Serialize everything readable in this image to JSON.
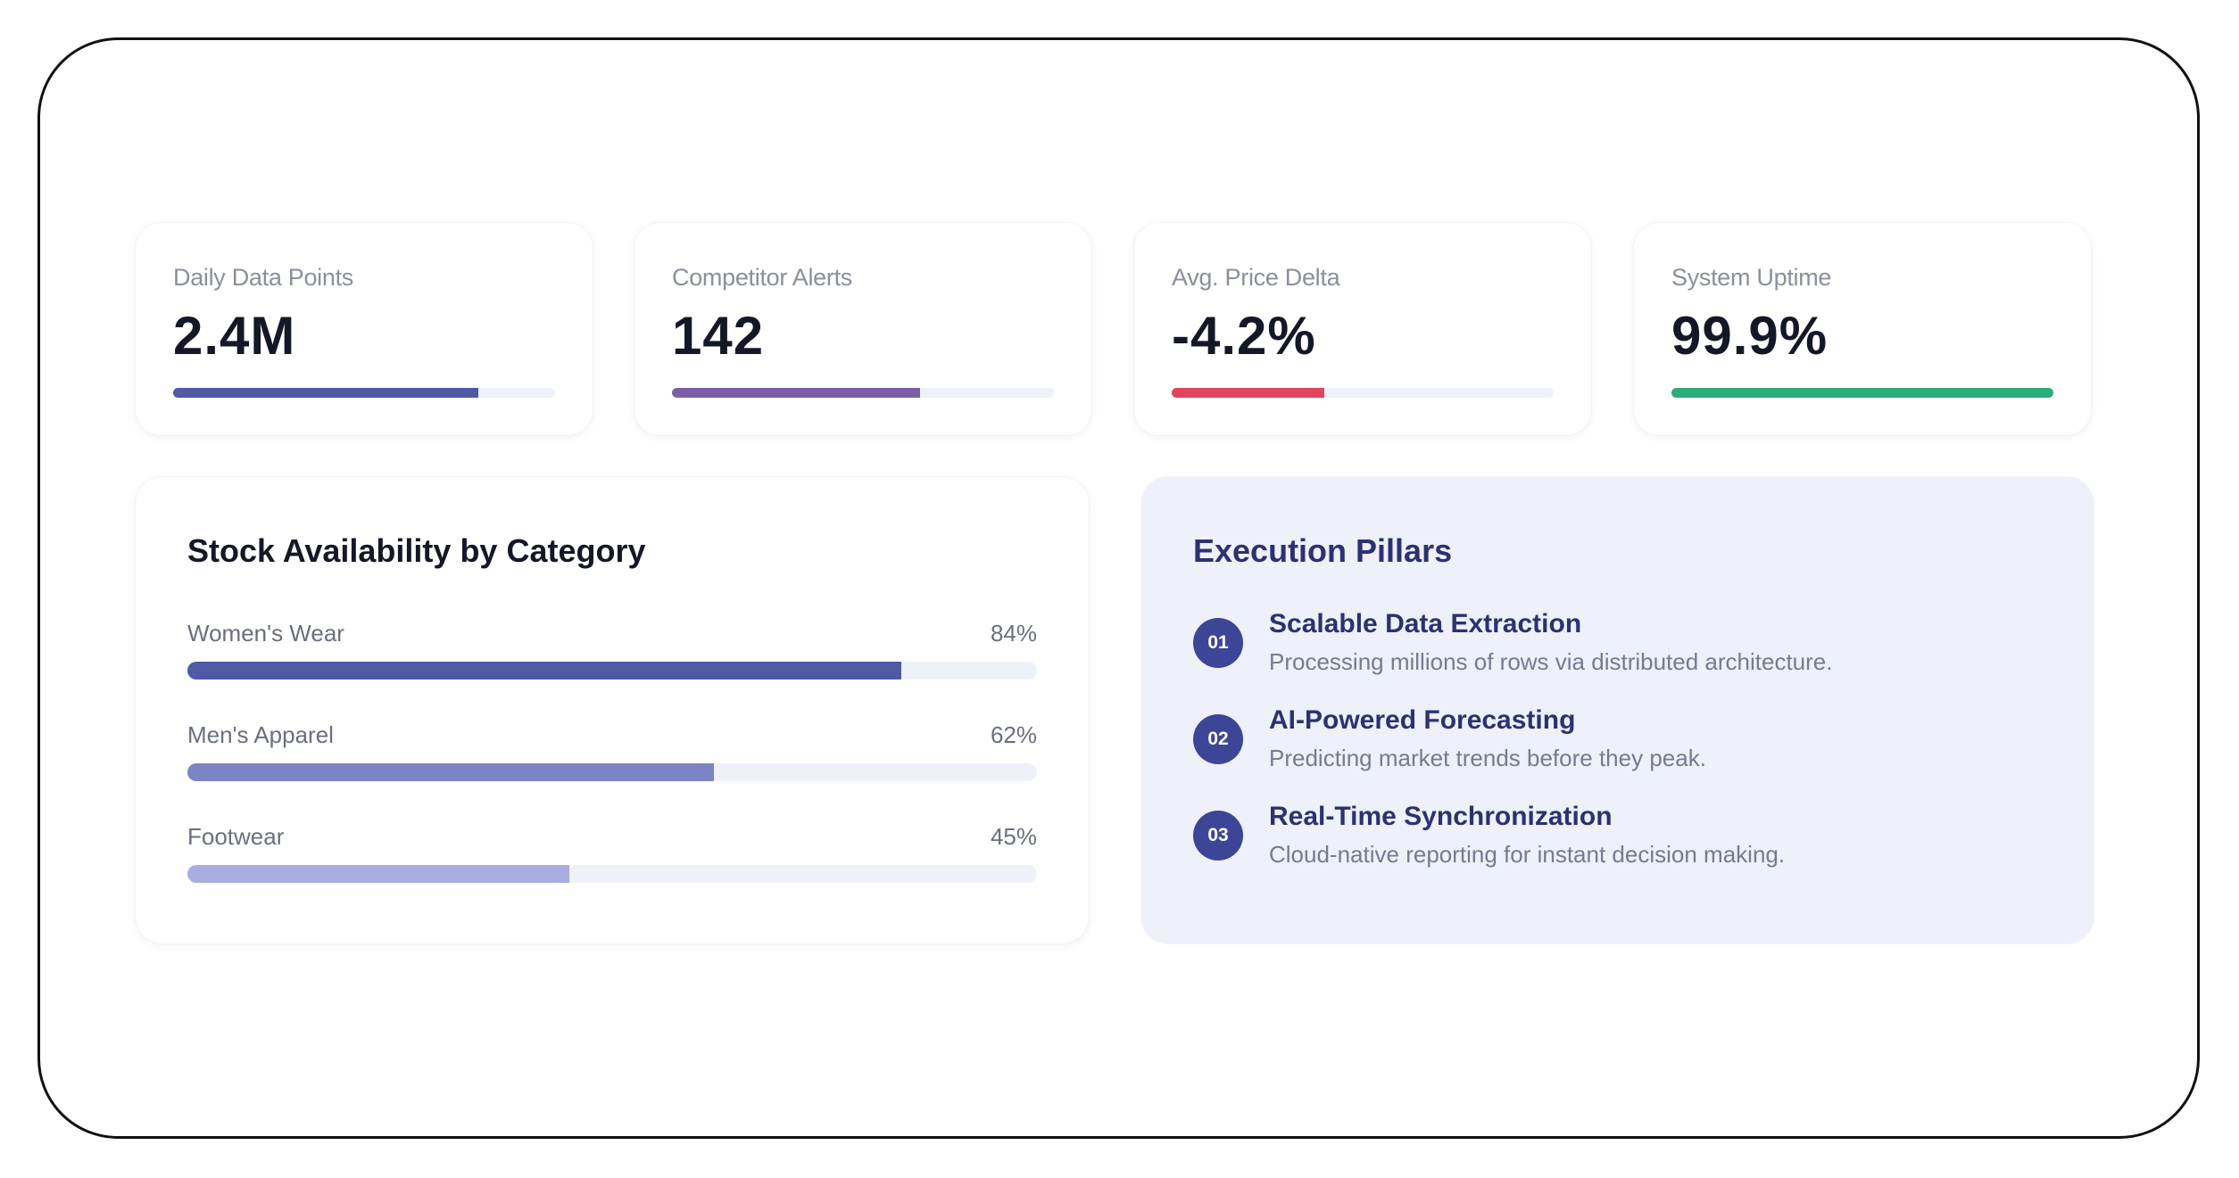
{
  "kpis": [
    {
      "label": "Daily Data Points",
      "value": "2.4M",
      "progress": 0.8,
      "color": "#4f59a6"
    },
    {
      "label": "Competitor Alerts",
      "value": "142",
      "progress": 0.65,
      "color": "#7b5ea8"
    },
    {
      "label": "Avg. Price Delta",
      "value": "-4.2%",
      "progress": 0.4,
      "color": "#e04560"
    },
    {
      "label": "System Uptime",
      "value": "99.9%",
      "progress": 1.0,
      "color": "#2bad7a"
    }
  ],
  "stock": {
    "title": "Stock Availability by Category",
    "categories": [
      {
        "name": "Women's Wear",
        "percent_label": "84%",
        "value": 0.84,
        "color": "#4f59a6"
      },
      {
        "name": "Men's Apparel",
        "percent_label": "62%",
        "value": 0.62,
        "color": "#7c84c6"
      },
      {
        "name": "Footwear",
        "percent_label": "45%",
        "value": 0.45,
        "color": "#a7aedf"
      }
    ]
  },
  "pillars": {
    "title": "Execution Pillars",
    "items": [
      {
        "number": "01",
        "title": "Scalable Data Extraction",
        "description": "Processing millions of rows via distributed architecture."
      },
      {
        "number": "02",
        "title": "AI-Powered Forecasting",
        "description": "Predicting market trends before they peak."
      },
      {
        "number": "03",
        "title": "Real-Time Synchronization",
        "description": "Cloud-native reporting for instant decision making."
      }
    ]
  }
}
